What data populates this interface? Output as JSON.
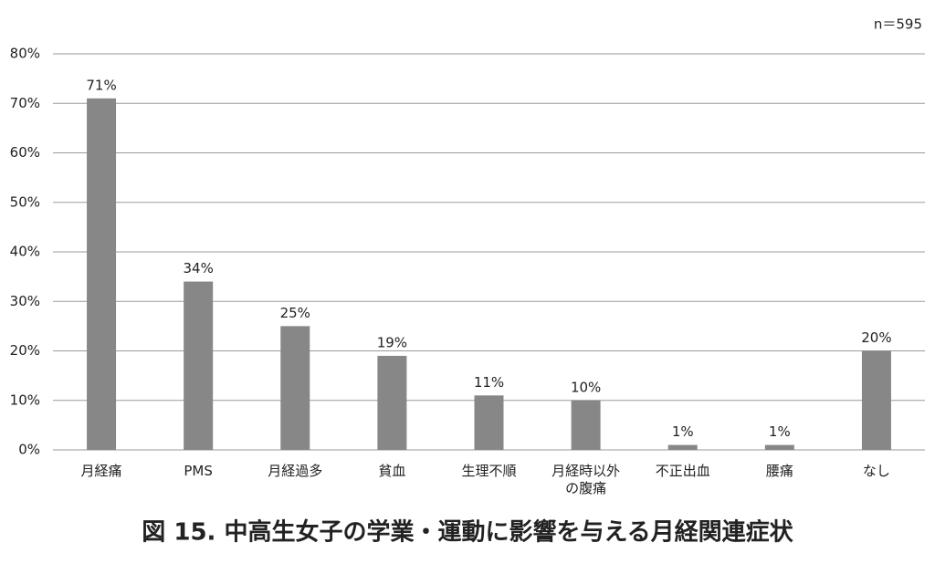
{
  "chart_data": {
    "type": "bar",
    "title": "図 15.  中高生女子の学業・運動に影響を与える月経関連症状",
    "annotation": "n＝595",
    "categories": [
      "月経痛",
      "PMS",
      "月経過多",
      "貧血",
      "生理不順",
      "月経時以外の腹痛",
      "不正出血",
      "腰痛",
      "なし"
    ],
    "values": [
      71,
      34,
      25,
      19,
      11,
      10,
      1,
      1,
      20
    ],
    "value_labels": [
      "71%",
      "34%",
      "25%",
      "19%",
      "11%",
      "10%",
      "1%",
      "1%",
      "20%"
    ],
    "color": "#878787",
    "ylim": [
      0,
      80
    ],
    "yticks": [
      {
        "value": 0,
        "label": "0%"
      },
      {
        "value": 10,
        "label": "10%"
      },
      {
        "value": 20,
        "label": "20%"
      },
      {
        "value": 30,
        "label": "30%"
      },
      {
        "value": 40,
        "label": "40%"
      },
      {
        "value": 50,
        "label": "50%"
      },
      {
        "value": 60,
        "label": "60%"
      },
      {
        "value": 70,
        "label": "70%"
      },
      {
        "value": 80,
        "label": "80%"
      }
    ],
    "grid": true
  }
}
